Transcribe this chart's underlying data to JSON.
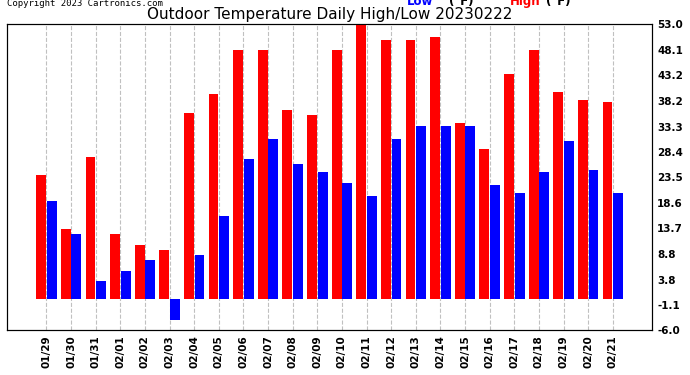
{
  "title": "Outdoor Temperature Daily High/Low 20230222",
  "copyright": "Copyright 2023 Cartronics.com",
  "legend_low_label": "Low",
  "legend_high_label": "High",
  "legend_unit": "(°F)",
  "ylabel_right_ticks": [
    -6.0,
    -1.1,
    3.8,
    8.8,
    13.7,
    18.6,
    23.5,
    28.4,
    33.3,
    38.2,
    43.2,
    48.1,
    53.0
  ],
  "dates": [
    "01/29",
    "01/30",
    "01/31",
    "02/01",
    "02/02",
    "02/03",
    "02/04",
    "02/05",
    "02/06",
    "02/07",
    "02/08",
    "02/09",
    "02/10",
    "02/11",
    "02/12",
    "02/13",
    "02/14",
    "02/15",
    "02/16",
    "02/17",
    "02/18",
    "02/19",
    "02/20",
    "02/21"
  ],
  "high": [
    24.0,
    13.5,
    27.5,
    12.5,
    10.5,
    9.5,
    36.0,
    39.5,
    48.0,
    48.0,
    36.5,
    35.5,
    48.0,
    54.0,
    50.0,
    50.0,
    50.5,
    34.0,
    29.0,
    43.5,
    48.0,
    40.0,
    38.5,
    38.0
  ],
  "low": [
    19.0,
    12.5,
    3.5,
    5.5,
    7.5,
    -4.0,
    8.5,
    16.0,
    27.0,
    31.0,
    26.0,
    24.5,
    22.5,
    20.0,
    31.0,
    33.5,
    33.5,
    33.5,
    22.0,
    20.5,
    24.5,
    30.5,
    25.0,
    20.5
  ],
  "high_color": "#ff0000",
  "low_color": "#0000ff",
  "bg_color": "#ffffff",
  "grid_color": "#c0c0c0",
  "title_fontsize": 11,
  "tick_fontsize": 7.5,
  "copyright_fontsize": 6.5,
  "legend_fontsize": 8.5,
  "ylim": [
    -6.0,
    53.0
  ],
  "bar_width": 0.4,
  "bar_gap": 0.03
}
